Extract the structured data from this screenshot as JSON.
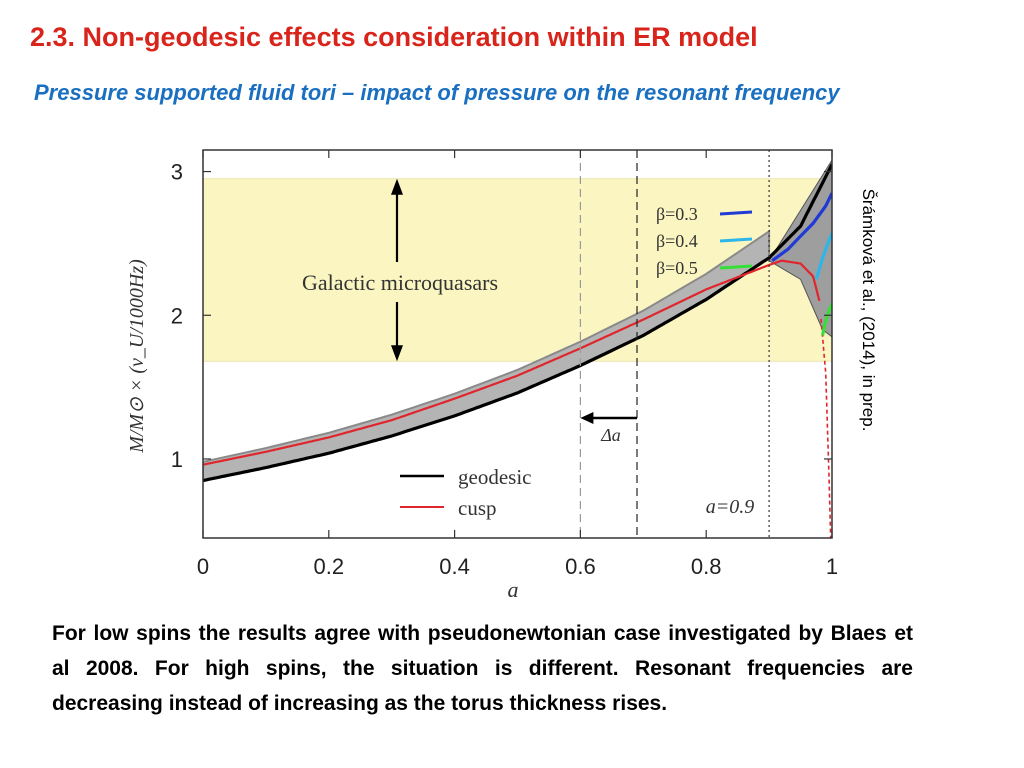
{
  "slide": {
    "title": "2.3. Non-geodesic effects consideration within ER model",
    "subtitle": "Pressure supported fluid tori – impact of pressure on the resonant frequency",
    "credit": "Šrámková et al., (2014), in prep.",
    "body": "For low spins the results agree with pseudonewtonian case investigated by Blaes et al 2008. For high spins, the situation is different. Resonant frequencies are decreasing instead of increasing as the torus thickness rises."
  },
  "colors": {
    "title": "#d9241b",
    "subtitle": "#1a6fc0",
    "band": "#faf5c1",
    "geodesic": "#000000",
    "cusp": "#e0262d",
    "beta_0_3": "#1f3ad6",
    "beta_0_4": "#2cb6ea",
    "beta_0_5": "#35e036",
    "shade": "#b4b4b4"
  },
  "chart_data": {
    "type": "line",
    "xlabel": "a",
    "ylabel": "M/M⊙ × (ν_U/1000Hz)",
    "xlim": [
      0,
      1
    ],
    "ylim": [
      0.45,
      3.15
    ],
    "xticks": [
      "0",
      "0.2",
      "0.4",
      "0.6",
      "0.8",
      "1"
    ],
    "yticks": [
      "1",
      "2",
      "3"
    ],
    "band": {
      "y0": 1.68,
      "y1": 2.95,
      "label": "Galactic microquasars"
    },
    "vlines": [
      {
        "x": 0.6,
        "style": "dashed-light"
      },
      {
        "x": 0.69,
        "style": "dashed"
      },
      {
        "x": 0.9,
        "style": "dotted",
        "label": "a=0.9"
      }
    ],
    "delta_annotation": {
      "label": "Δa",
      "from": 0.69,
      "to": 0.6
    },
    "legend": [
      {
        "name": "geodesic",
        "color": "#000000"
      },
      {
        "name": "cusp",
        "color": "#e0262d"
      }
    ],
    "beta_legend": [
      {
        "name": "β=0.3",
        "color": "#1f3ad6"
      },
      {
        "name": "β=0.4",
        "color": "#2cb6ea"
      },
      {
        "name": "β=0.5",
        "color": "#35e036"
      }
    ],
    "series": [
      {
        "name": "geodesic",
        "x": [
          0,
          0.1,
          0.2,
          0.3,
          0.4,
          0.5,
          0.6,
          0.7,
          0.8,
          0.9,
          0.95,
          1.0
        ],
        "y": [
          0.85,
          0.94,
          1.04,
          1.16,
          1.3,
          1.46,
          1.65,
          1.86,
          2.11,
          2.4,
          2.62,
          3.05
        ]
      },
      {
        "name": "cusp",
        "x": [
          0,
          0.1,
          0.2,
          0.3,
          0.4,
          0.5,
          0.6,
          0.7,
          0.8,
          0.9,
          0.92,
          0.95,
          0.97,
          0.98,
          0.99,
          0.995
        ],
        "y": [
          0.96,
          1.05,
          1.15,
          1.27,
          1.42,
          1.58,
          1.77,
          1.97,
          2.18,
          2.35,
          2.38,
          2.36,
          2.27,
          2.1,
          1.6,
          0.9
        ]
      }
    ]
  }
}
